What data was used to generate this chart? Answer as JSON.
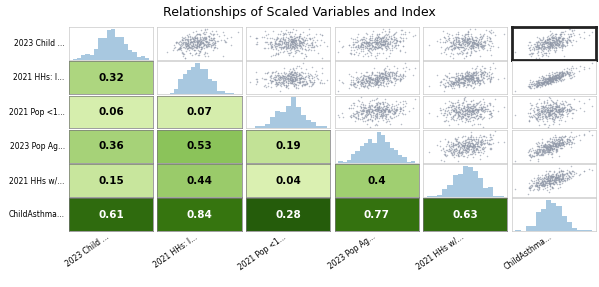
{
  "title": "Relationships of Scaled Variables and Index",
  "variables": [
    "2023 Child ...",
    "2021 HHs: I...",
    "2021 Pop <1...",
    "2023 Pop Ag...",
    "2021 HHs w/...",
    "ChildAsthma..."
  ],
  "xlabels": [
    "2023 Child ...",
    "2021 HHs: I...",
    "2021 Pop <1...",
    "2023 Pop Ag...",
    "2021 HHs w/...",
    "ChildAsthma..."
  ],
  "correlations": [
    [
      null,
      0.32,
      0.06,
      0.36,
      0.15,
      0.61
    ],
    [
      0.32,
      null,
      0.07,
      0.53,
      0.44,
      0.84
    ],
    [
      0.06,
      0.07,
      null,
      0.19,
      0.04,
      0.28
    ],
    [
      0.36,
      0.53,
      0.19,
      null,
      0.4,
      0.77
    ],
    [
      0.15,
      0.44,
      0.04,
      0.4,
      null,
      0.63
    ],
    [
      0.61,
      0.84,
      0.28,
      0.77,
      0.63,
      null
    ]
  ],
  "hist_color": "#a8c8e0",
  "scatter_color_main": "#9098a8",
  "scatter_color_highlight": "#8b1a6e",
  "background_color": "#ffffff",
  "title_fontsize": 9,
  "label_fontsize": 5.5,
  "corr_fontsize": 7.5,
  "n_points": 400,
  "corr_colors": {
    "row1": "#c8e89a",
    "row2_light": "#d8f0a0",
    "row2_med": "#a8d870",
    "row3_light": "#c8e880",
    "row3_med": "#5aaa20",
    "row4_light": "#d0ee90",
    "row4_med": "#78c030",
    "row5_light": "#daf0a8",
    "row5_med": "#68b828",
    "last_dark1": "#256010",
    "last_dark2": "#1e5008",
    "last_dark3": "#306818",
    "last_dark4": "#1a4808",
    "last_dark5": "#2e6010"
  }
}
